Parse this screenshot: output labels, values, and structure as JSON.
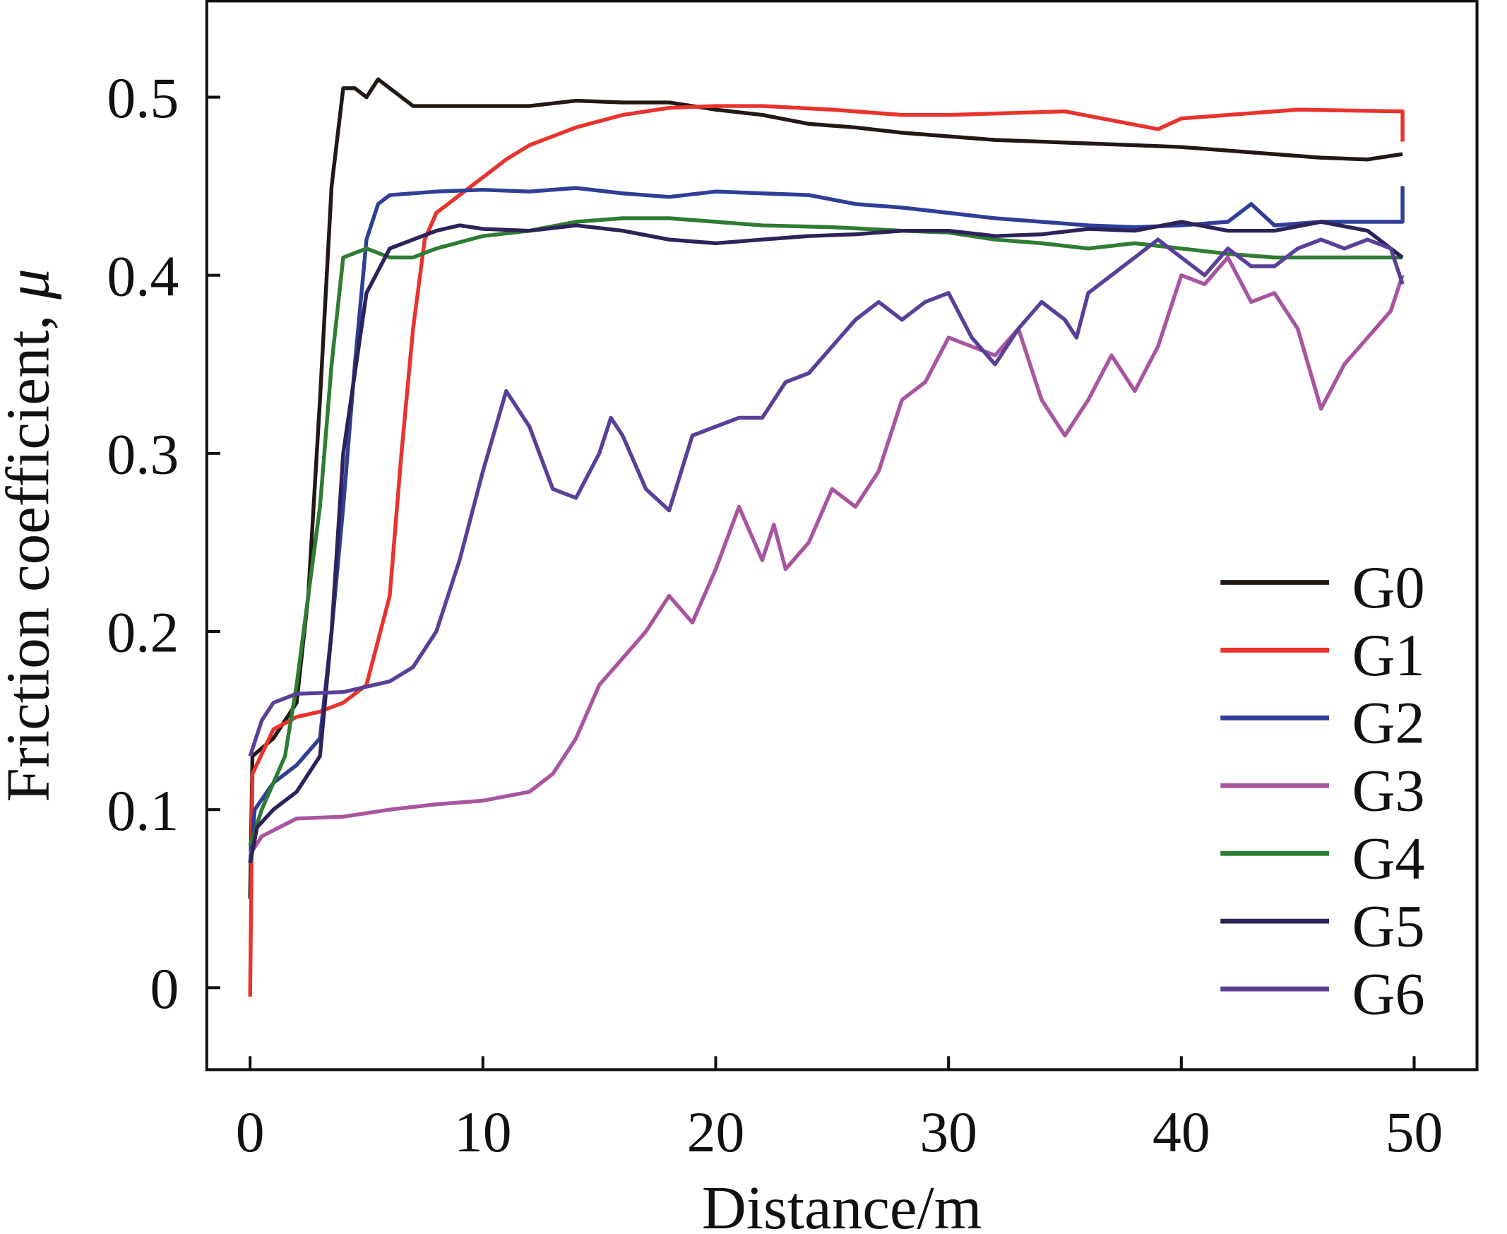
{
  "chart_data": {
    "type": "line",
    "title": "",
    "xlabel": "Distance/m",
    "ylabel": "Friction coefficient, ",
    "ylabel_symbol": "μ",
    "xlim": [
      -1.86,
      52.7
    ],
    "ylim": [
      -0.046,
      0.554
    ],
    "xticks": [
      0,
      10,
      20,
      30,
      40,
      50
    ],
    "xtick_labels": [
      "0",
      "10",
      "20",
      "30",
      "40",
      "50"
    ],
    "yticks": [
      0,
      0.1,
      0.2,
      0.3,
      0.4,
      0.5
    ],
    "ytick_labels": [
      "0",
      "0.1",
      "0.2",
      "0.3",
      "0.4",
      "0.5"
    ],
    "grid": false,
    "legend_position": "bottom-right",
    "series": [
      {
        "name": "G0",
        "color": "#231815",
        "x": [
          0,
          0.1,
          1,
          2,
          2.5,
          3,
          3.5,
          4,
          4.5,
          5,
          5.5,
          6,
          7,
          8,
          10,
          12,
          14,
          16,
          18,
          20,
          22,
          24,
          26,
          28,
          30,
          32,
          34,
          36,
          38,
          40,
          42,
          44,
          46,
          48,
          49.5
        ],
        "y": [
          0.05,
          0.13,
          0.14,
          0.16,
          0.22,
          0.33,
          0.45,
          0.505,
          0.505,
          0.5,
          0.51,
          0.505,
          0.495,
          0.495,
          0.495,
          0.495,
          0.498,
          0.497,
          0.497,
          0.493,
          0.49,
          0.485,
          0.483,
          0.48,
          0.478,
          0.476,
          0.475,
          0.474,
          0.473,
          0.472,
          0.47,
          0.468,
          0.466,
          0.465,
          0.468
        ]
      },
      {
        "name": "G1",
        "color": "#e8332e",
        "x": [
          0,
          0.1,
          1,
          2,
          3,
          4,
          5,
          6,
          6.5,
          7,
          7.5,
          8,
          9,
          10,
          11,
          12,
          14,
          16,
          18,
          20,
          22,
          25,
          28,
          30,
          35,
          39,
          40,
          45,
          49.5,
          49.5
        ],
        "y": [
          -0.005,
          0.12,
          0.145,
          0.152,
          0.155,
          0.16,
          0.17,
          0.22,
          0.3,
          0.37,
          0.42,
          0.435,
          0.445,
          0.455,
          0.465,
          0.473,
          0.483,
          0.49,
          0.494,
          0.495,
          0.495,
          0.493,
          0.49,
          0.49,
          0.492,
          0.482,
          0.488,
          0.493,
          0.492,
          0.475
        ]
      },
      {
        "name": "G2",
        "color": "#2f3f98",
        "x": [
          0,
          0.2,
          1,
          2,
          3,
          3.5,
          4,
          4.5,
          5,
          5.5,
          6,
          8,
          10,
          12,
          14,
          16,
          18,
          20,
          22,
          24,
          26,
          28,
          30,
          32,
          34,
          36,
          38,
          40,
          42,
          43,
          44,
          46,
          48,
          49.5,
          49.5
        ],
        "y": [
          0.07,
          0.1,
          0.115,
          0.125,
          0.14,
          0.2,
          0.27,
          0.35,
          0.42,
          0.44,
          0.445,
          0.447,
          0.448,
          0.447,
          0.449,
          0.446,
          0.444,
          0.447,
          0.446,
          0.445,
          0.44,
          0.438,
          0.435,
          0.432,
          0.43,
          0.428,
          0.427,
          0.428,
          0.43,
          0.44,
          0.428,
          0.43,
          0.43,
          0.43,
          0.45
        ]
      },
      {
        "name": "G3",
        "color": "#a855a0",
        "x": [
          0,
          0.5,
          2,
          4,
          6,
          8,
          10,
          12,
          13,
          14,
          15,
          16,
          17,
          18,
          19,
          20,
          21,
          22,
          22.5,
          23,
          24,
          25,
          26,
          27,
          28,
          29,
          30,
          31,
          32,
          33,
          34,
          35,
          36,
          37,
          38,
          39,
          40,
          41,
          42,
          43,
          44,
          45,
          46,
          47,
          48,
          49,
          49.5
        ],
        "y": [
          0.075,
          0.085,
          0.095,
          0.096,
          0.1,
          0.103,
          0.105,
          0.11,
          0.12,
          0.14,
          0.17,
          0.185,
          0.2,
          0.22,
          0.205,
          0.235,
          0.27,
          0.24,
          0.26,
          0.235,
          0.25,
          0.28,
          0.27,
          0.29,
          0.33,
          0.34,
          0.365,
          0.36,
          0.355,
          0.37,
          0.33,
          0.31,
          0.33,
          0.355,
          0.335,
          0.36,
          0.4,
          0.395,
          0.41,
          0.385,
          0.39,
          0.37,
          0.325,
          0.35,
          0.365,
          0.38,
          0.4
        ]
      },
      {
        "name": "G4",
        "color": "#2e7d32",
        "x": [
          0,
          0.5,
          1.5,
          2,
          2.5,
          3,
          3.5,
          4,
          5,
          6,
          7,
          8,
          10,
          12,
          14,
          16,
          18,
          20,
          22,
          25,
          28,
          30,
          32,
          34,
          36,
          38,
          40,
          42,
          44,
          46,
          48,
          49.5
        ],
        "y": [
          0.08,
          0.1,
          0.13,
          0.17,
          0.22,
          0.27,
          0.35,
          0.41,
          0.415,
          0.41,
          0.41,
          0.415,
          0.422,
          0.425,
          0.43,
          0.432,
          0.432,
          0.43,
          0.428,
          0.427,
          0.425,
          0.424,
          0.42,
          0.418,
          0.415,
          0.418,
          0.415,
          0.412,
          0.41,
          0.41,
          0.41,
          0.41
        ]
      },
      {
        "name": "G5",
        "color": "#2d2259",
        "x": [
          0,
          0.3,
          1,
          2,
          3,
          3.5,
          4,
          5,
          6,
          7,
          8,
          9,
          10,
          12,
          14,
          16,
          18,
          20,
          22,
          24,
          26,
          28,
          30,
          32,
          34,
          36,
          38,
          40,
          42,
          44,
          46,
          48,
          49.5
        ],
        "y": [
          0.07,
          0.09,
          0.1,
          0.11,
          0.13,
          0.2,
          0.3,
          0.39,
          0.415,
          0.42,
          0.425,
          0.428,
          0.426,
          0.425,
          0.428,
          0.425,
          0.42,
          0.418,
          0.42,
          0.422,
          0.423,
          0.425,
          0.425,
          0.422,
          0.423,
          0.426,
          0.425,
          0.43,
          0.425,
          0.425,
          0.43,
          0.425,
          0.41
        ]
      },
      {
        "name": "G6",
        "color": "#5a3f98",
        "x": [
          0,
          0.5,
          1,
          2,
          4,
          6,
          7,
          8,
          9,
          10,
          11,
          12,
          13,
          14,
          15,
          15.5,
          16,
          17,
          18,
          19,
          20,
          21,
          22,
          23,
          24,
          25,
          26,
          27,
          28,
          29,
          30,
          31,
          32,
          33,
          34,
          35,
          35.5,
          36,
          37,
          38,
          39,
          40,
          41,
          42,
          43,
          44,
          45,
          46,
          47,
          48,
          49,
          49.5
        ],
        "y": [
          0.13,
          0.15,
          0.16,
          0.165,
          0.166,
          0.172,
          0.18,
          0.2,
          0.24,
          0.29,
          0.335,
          0.315,
          0.28,
          0.275,
          0.3,
          0.32,
          0.31,
          0.28,
          0.268,
          0.31,
          0.315,
          0.32,
          0.32,
          0.34,
          0.345,
          0.36,
          0.375,
          0.385,
          0.375,
          0.385,
          0.39,
          0.365,
          0.35,
          0.37,
          0.385,
          0.375,
          0.365,
          0.39,
          0.4,
          0.41,
          0.42,
          0.41,
          0.4,
          0.415,
          0.405,
          0.405,
          0.415,
          0.42,
          0.415,
          0.42,
          0.415,
          0.395
        ]
      }
    ]
  }
}
